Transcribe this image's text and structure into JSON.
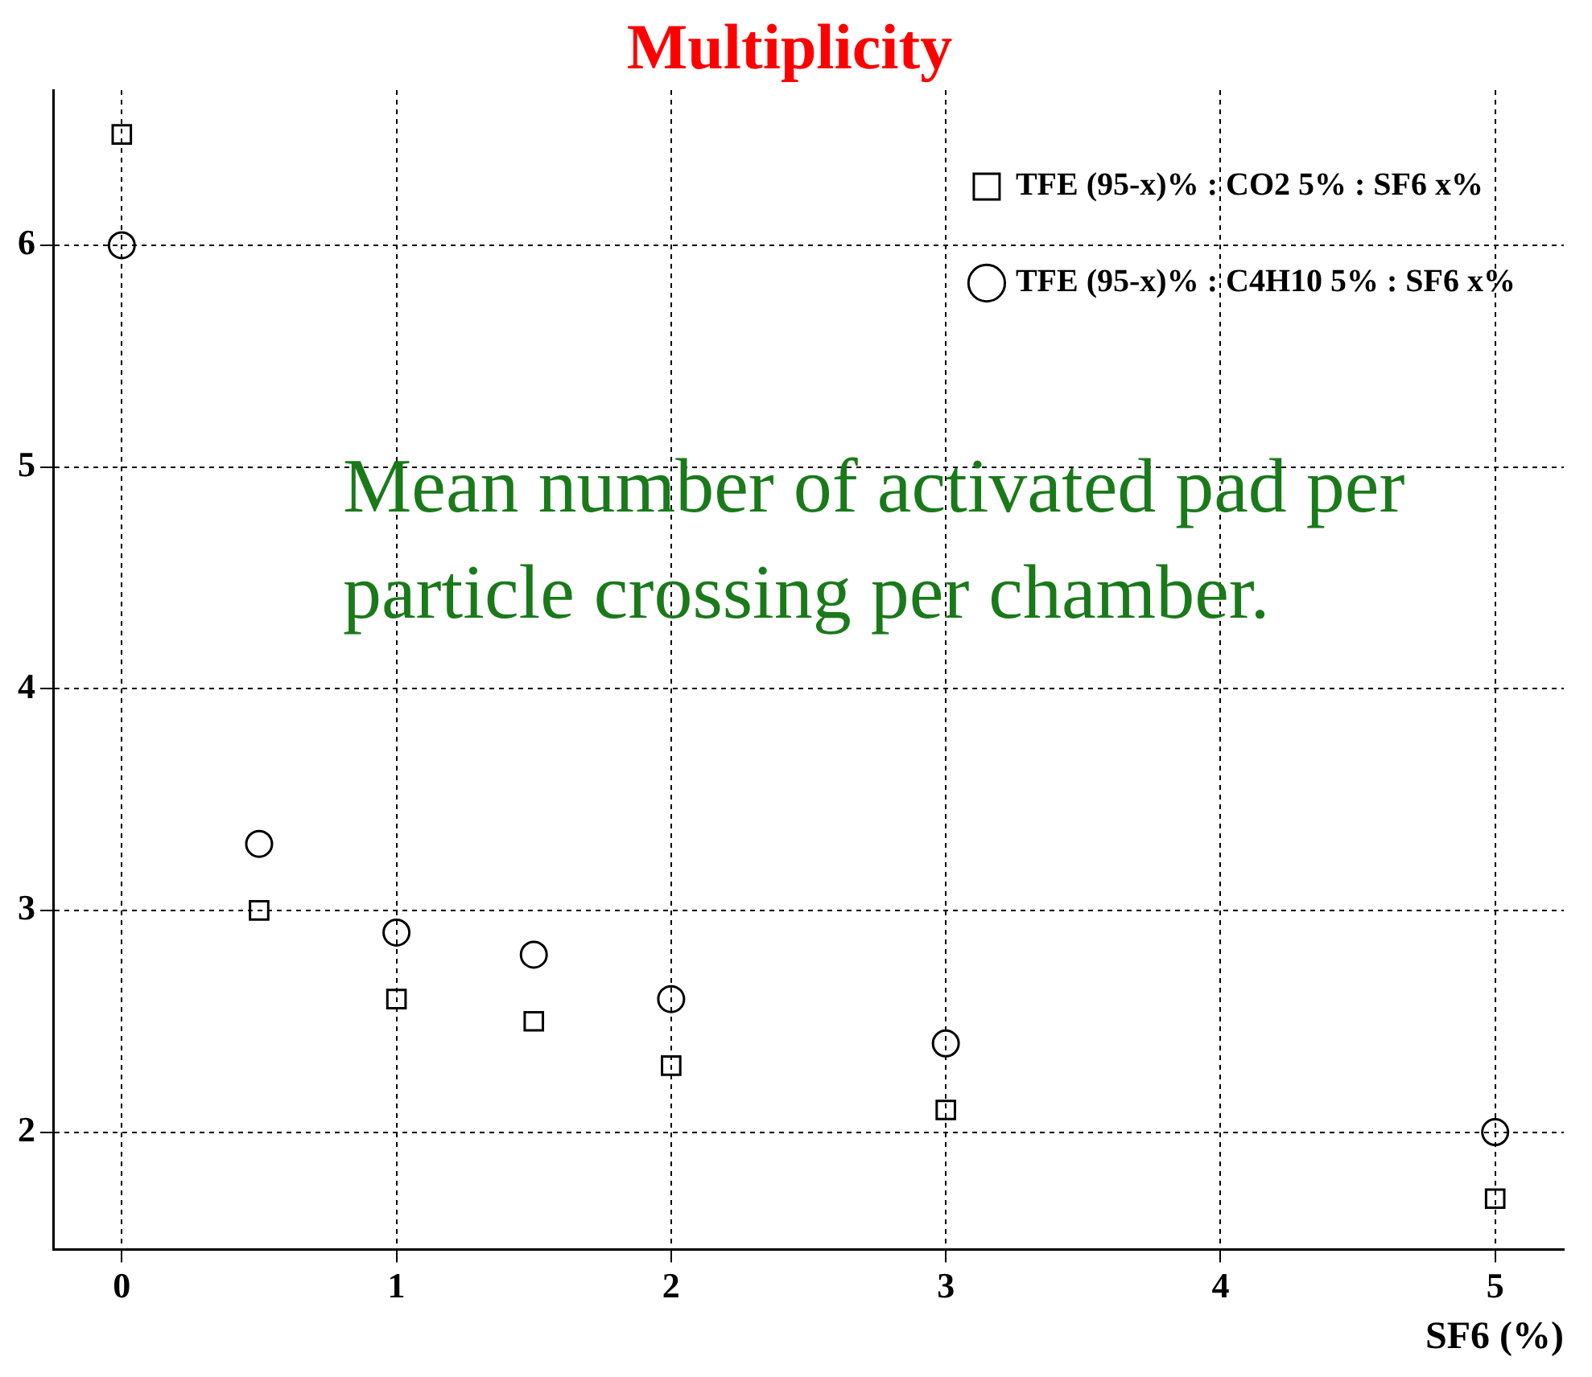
{
  "chart_data": {
    "type": "scatter",
    "title": "Multiplicity",
    "xlabel": "SF6 (%)",
    "annotations": [
      "Mean number of activated pad per particle crossing per chamber."
    ],
    "series": [
      {
        "name": "TFE (95-x)% : CO2 5% : SF6 x%",
        "color": "#000000",
        "marker": "square",
        "x": [
          0,
          0.5,
          1,
          1.5,
          2,
          3,
          5
        ],
        "values": [
          6.5,
          3.0,
          2.6,
          2.5,
          2.3,
          2.1,
          1.7
        ]
      },
      {
        "name": "TFE (95-x)% : C4H10 5% : SF6 x%",
        "color": "#000000",
        "marker": "circle",
        "x": [
          0,
          0.5,
          1,
          1.5,
          2,
          3,
          5
        ],
        "values": [
          6.0,
          3.3,
          2.9,
          2.8,
          2.6,
          2.4,
          2.0
        ]
      }
    ],
    "xlim": [
      -0.25,
      5.25
    ],
    "xticks": [
      0,
      1,
      2,
      3,
      4,
      5
    ],
    "ylim": [
      1.47,
      6.7
    ],
    "yticks": [
      2,
      3,
      4,
      5,
      6
    ],
    "grid": true,
    "legend": "top right"
  }
}
